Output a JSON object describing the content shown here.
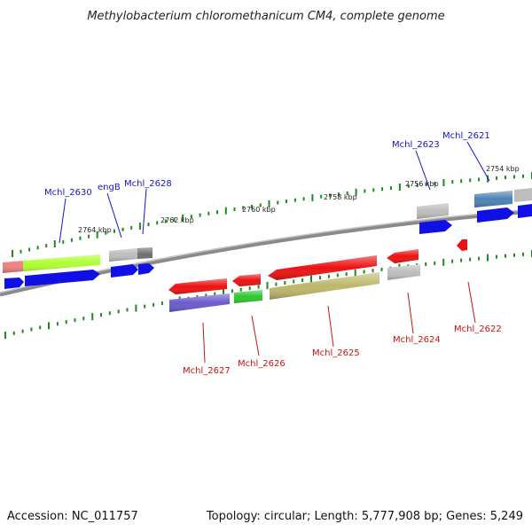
{
  "title": "Methylobacterium chloromethanicum CM4, complete genome",
  "footer": {
    "accession": "Accession: NC_011757",
    "topology": "Topology: circular; Length: 5,777,908 bp; Genes: 5,249"
  },
  "colors": {
    "forward_label": "#1515c8",
    "reverse_label": "#cc1111",
    "backbone": "#8a8a8a",
    "tick": "#1f8a1f"
  },
  "scale_labels": [
    "2764 kbp",
    "2762 kbp",
    "2760 kbp",
    "2758 kbp",
    "2756 kbp",
    "2754 kbp"
  ],
  "forward_labels": [
    "Mchl_2630",
    "engB",
    "Mchl_2628",
    "Mchl_2623",
    "Mchl_2621"
  ],
  "reverse_labels": [
    "Mchl_2627",
    "Mchl_2626",
    "Mchl_2625",
    "Mchl_2624",
    "Mchl_2622"
  ]
}
